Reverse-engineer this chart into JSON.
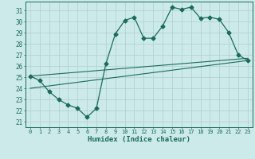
{
  "xlabel": "Humidex (Indice chaleur)",
  "x_ticks": [
    0,
    1,
    2,
    3,
    4,
    5,
    6,
    7,
    8,
    9,
    10,
    11,
    12,
    13,
    14,
    15,
    16,
    17,
    18,
    19,
    20,
    21,
    22,
    23
  ],
  "ylim": [
    20.5,
    31.8
  ],
  "xlim": [
    -0.5,
    23.5
  ],
  "yticks": [
    21,
    22,
    23,
    24,
    25,
    26,
    27,
    28,
    29,
    30,
    31
  ],
  "line1_x": [
    0,
    1,
    2,
    3,
    4,
    5,
    6,
    7,
    8,
    9,
    10,
    11,
    12,
    13,
    14,
    15,
    16,
    17,
    18,
    19,
    20,
    21,
    22,
    23
  ],
  "line1_y": [
    25.1,
    24.7,
    23.7,
    23.0,
    22.5,
    22.2,
    21.4,
    22.2,
    26.2,
    28.9,
    30.1,
    30.4,
    28.5,
    28.5,
    29.6,
    31.3,
    31.1,
    31.3,
    30.3,
    30.4,
    30.2,
    29.0,
    27.0,
    26.5
  ],
  "line2_x": [
    0,
    23
  ],
  "line2_y": [
    25.1,
    26.7
  ],
  "line3_x": [
    0,
    23
  ],
  "line3_y": [
    24.0,
    26.5
  ],
  "color": "#1a6b5a",
  "bg_color": "#cdeaea",
  "grid_color": "#aecece",
  "marker": "D",
  "marker_size": 2.5
}
